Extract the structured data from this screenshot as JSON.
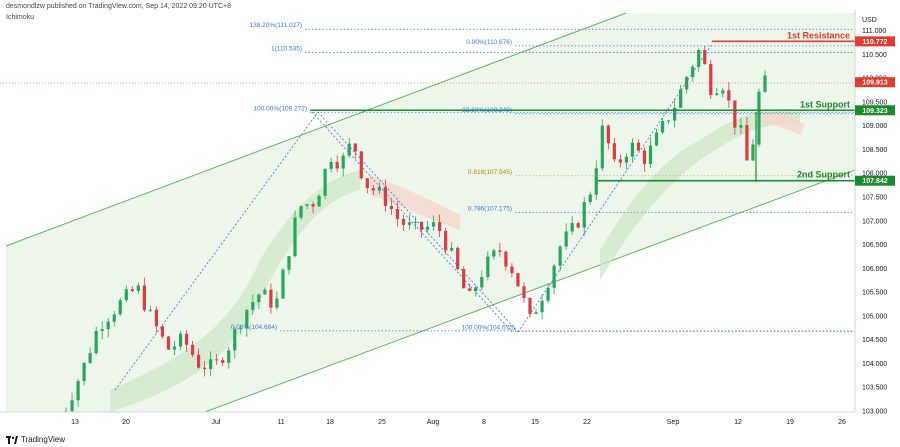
{
  "header": {
    "publisher": "desmondlzw published on TradingView.com, Sep 14, 2022 09:20 UTC+8",
    "indicator": "Ichimoku"
  },
  "footer": {
    "brand": "TradingView"
  },
  "chart_data": {
    "type": "candlestick",
    "currency": "USD",
    "y_ticks": [
      "111.000",
      "110.500",
      "110.000",
      "109.500",
      "109.000",
      "108.500",
      "108.000",
      "107.500",
      "107.000",
      "106.500",
      "106.000",
      "105.500",
      "105.000",
      "104.500",
      "104.000",
      "103.500",
      "103.000"
    ],
    "x_ticks": [
      "13",
      "20",
      "Jul",
      "11",
      "18",
      "25",
      "Aug",
      "8",
      "15",
      "22",
      "Sep",
      "12",
      "19",
      "26"
    ],
    "ylim": [
      103.0,
      111.4
    ],
    "price_labels": [
      {
        "value": 110.772,
        "text": "110.772",
        "color": "#e03b2f"
      },
      {
        "value": 109.913,
        "text": "109.913",
        "color": "#e03b2f"
      },
      {
        "value": 109.323,
        "text": "109.323",
        "color": "#1b8a2e"
      },
      {
        "value": 107.842,
        "text": "107.842",
        "color": "#1b8a2e"
      }
    ],
    "levels": [
      {
        "name": "1st Resistance",
        "value": 110.772,
        "color": "#e03b2f"
      },
      {
        "name": "1st Support",
        "value": 109.323,
        "color": "#1b8a2e"
      },
      {
        "name": "2nd Support",
        "value": 107.842,
        "color": "#1b8a2e"
      }
    ],
    "fib_labels": [
      {
        "text": "138.20%(111.027)",
        "value": 111.027
      },
      {
        "text": "0.00%(110.676)",
        "value": 110.676
      },
      {
        "text": "1(110.535)",
        "value": 110.535
      },
      {
        "text": "100.00%(109.272)",
        "value": 109.272
      },
      {
        "text": "23.60%(109.249)",
        "value": 109.249
      },
      {
        "text": "0.618(107.945)",
        "value": 107.945
      },
      {
        "text": "0.786(107.175)",
        "value": 107.175
      },
      {
        "text": "0.00%(104.684)",
        "value": 104.684
      },
      {
        "text": "100.00%(104.675)",
        "value": 104.675
      }
    ],
    "price_path": [
      [
        0,
        102.8
      ],
      [
        0.03,
        103.9
      ],
      [
        0.05,
        104.8
      ],
      [
        0.08,
        105.3
      ],
      [
        0.1,
        105.6
      ],
      [
        0.12,
        104.9
      ],
      [
        0.14,
        104.3
      ],
      [
        0.16,
        104.5
      ],
      [
        0.18,
        104.0
      ],
      [
        0.2,
        103.9
      ],
      [
        0.22,
        104.4
      ],
      [
        0.24,
        105.1
      ],
      [
        0.26,
        105.5
      ],
      [
        0.28,
        105.2
      ],
      [
        0.3,
        106.6
      ],
      [
        0.31,
        107.3
      ],
      [
        0.33,
        107.4
      ],
      [
        0.34,
        107.8
      ],
      [
        0.35,
        108.4
      ],
      [
        0.365,
        108.2
      ],
      [
        0.38,
        108.7
      ],
      [
        0.395,
        107.8
      ],
      [
        0.42,
        107.5
      ],
      [
        0.44,
        107.0
      ],
      [
        0.46,
        106.8
      ],
      [
        0.49,
        106.9
      ],
      [
        0.51,
        106.2
      ],
      [
        0.53,
        105.3
      ],
      [
        0.55,
        106.0
      ],
      [
        0.57,
        106.4
      ],
      [
        0.59,
        105.9
      ],
      [
        0.61,
        104.9
      ],
      [
        0.63,
        105.6
      ],
      [
        0.65,
        106.5
      ],
      [
        0.67,
        106.9
      ],
      [
        0.69,
        107.7
      ],
      [
        0.705,
        109.0
      ],
      [
        0.72,
        108.1
      ],
      [
        0.74,
        108.6
      ],
      [
        0.76,
        108.3
      ],
      [
        0.78,
        108.9
      ],
      [
        0.8,
        109.5
      ],
      [
        0.815,
        110.1
      ],
      [
        0.83,
        110.6
      ],
      [
        0.845,
        109.8
      ],
      [
        0.86,
        109.9
      ],
      [
        0.875,
        109.1
      ],
      [
        0.885,
        108.8
      ],
      [
        0.895,
        107.95
      ],
      [
        0.905,
        109.6
      ],
      [
        0.915,
        109.9
      ]
    ]
  }
}
